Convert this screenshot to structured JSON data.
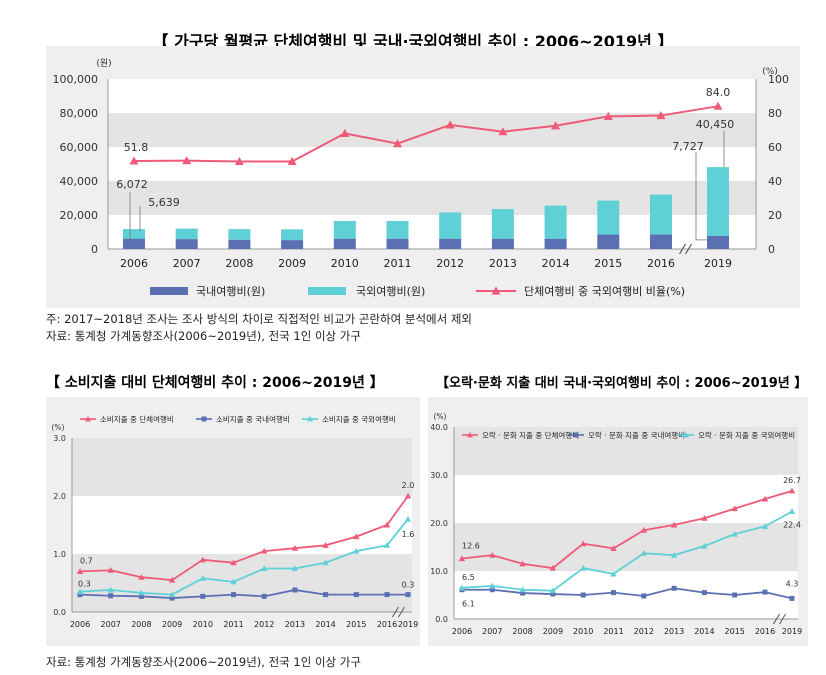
{
  "main": {
    "title": "【 가구당 월평균 단체여행비 및 국내·국외여행비 추이 : 2006~2019년 】",
    "note1": "주: 2017~2018년 조사는 조사 방식의 차이로 직접적인 비교가 곤란하여 분석에서 제외",
    "note2": "자료: 통계청 가계동향조사(2006~2019년), 전국 1인 이상 가구"
  },
  "left": {
    "title": "【 소비지출 대비 단체여행비 추이 : 2006~2019년 】"
  },
  "right": {
    "title": "【오락·문화 지출 대비 국내·국외여행비 추이 : 2006~2019년 】"
  },
  "bottom_note": "자료: 통계청 가계동향조사(2006~2019년), 전국 1인 이상 가구",
  "colors": {
    "pink": "#ef5a78",
    "blue": "#5b6fb3",
    "teal": "#5fd0d6",
    "band": "#e4e4e4",
    "panel": "#efefef"
  },
  "chart_data": [
    {
      "type": "bar",
      "categories": [
        "2006",
        "2007",
        "2008",
        "2009",
        "2010",
        "2011",
        "2012",
        "2013",
        "2014",
        "2015",
        "2016",
        "2019"
      ],
      "ylabel": "(원)",
      "y2label": "(%)",
      "ylim": [
        0,
        100000
      ],
      "y2lim": [
        0,
        100
      ],
      "yticks": [
        "0",
        "20,000",
        "40,000",
        "60,000",
        "80,000",
        "100,000"
      ],
      "y2ticks": [
        "0",
        "20",
        "40",
        "60",
        "80",
        "100"
      ],
      "series": [
        {
          "name": "국내여행비(원)",
          "type": "bar",
          "values": [
            6072,
            5800,
            5400,
            5200,
            6000,
            6000,
            6000,
            6000,
            6000,
            8500,
            8500,
            7727
          ]
        },
        {
          "name": "국외여행비(원)",
          "type": "bar",
          "values": [
            5639,
            6200,
            6300,
            6400,
            10500,
            10500,
            15500,
            17500,
            19500,
            20000,
            23500,
            40450
          ]
        },
        {
          "name": "단체여행비 중 국외여행비 비율(%)",
          "type": "line",
          "axis": "right",
          "values": [
            51.8,
            52,
            51.5,
            51.5,
            68,
            62,
            73,
            69,
            72.5,
            78,
            78.5,
            84.0
          ]
        }
      ],
      "data_labels": {
        "ratio_first": "51.8",
        "ratio_last": "84.0",
        "domestic_first": "6,072",
        "foreign_first": "5,639",
        "domestic_last": "7,727",
        "foreign_last": "40,450"
      },
      "legend": "bottom"
    },
    {
      "type": "line",
      "categories": [
        "2006",
        "2007",
        "2008",
        "2009",
        "2010",
        "2011",
        "2012",
        "2013",
        "2014",
        "2015",
        "2016",
        "2019"
      ],
      "ylabel": "(%)",
      "ylim": [
        0,
        3.0
      ],
      "yticks": [
        "0.0",
        "1.0",
        "2.0",
        "3.0"
      ],
      "series": [
        {
          "name": "소비지출 중 단체여행비",
          "values": [
            0.7,
            0.72,
            0.6,
            0.55,
            0.9,
            0.85,
            1.05,
            1.1,
            1.15,
            1.3,
            1.5,
            2.0
          ]
        },
        {
          "name": "소비지출 중 국내여행비",
          "values": [
            0.3,
            0.28,
            0.27,
            0.24,
            0.27,
            0.3,
            0.27,
            0.38,
            0.3,
            0.3,
            0.3,
            0.3
          ]
        },
        {
          "name": "소비지출 중 국외여행비",
          "values": [
            0.35,
            0.38,
            0.33,
            0.3,
            0.58,
            0.52,
            0.75,
            0.75,
            0.85,
            1.05,
            1.15,
            1.6
          ]
        }
      ],
      "data_labels": {
        "s1_first": "0.7",
        "s1_last": "2.0",
        "s2_first": "0.3",
        "s2_last": "0.3",
        "s3_last": "1.6"
      },
      "legend": "top"
    },
    {
      "type": "line",
      "categories": [
        "2006",
        "2007",
        "2008",
        "2009",
        "2010",
        "2011",
        "2012",
        "2013",
        "2014",
        "2015",
        "2016",
        "2019"
      ],
      "ylabel": "(%)",
      "ylim": [
        0,
        40.0
      ],
      "yticks": [
        "0.0",
        "10.0",
        "20.0",
        "30.0",
        "40.0"
      ],
      "series": [
        {
          "name": "오락 · 문화 지출 중 단체여행비",
          "values": [
            12.6,
            13.3,
            11.5,
            10.6,
            15.7,
            14.7,
            18.5,
            19.6,
            21.0,
            23.0,
            25.0,
            26.7
          ]
        },
        {
          "name": "오락 · 문화 지출 중 국내여행비",
          "values": [
            6.1,
            6.1,
            5.4,
            5.2,
            5.0,
            5.5,
            4.8,
            6.4,
            5.5,
            5.0,
            5.6,
            4.3
          ]
        },
        {
          "name": "오락 · 문화 지출 중 국외여행비",
          "values": [
            6.5,
            6.9,
            6.1,
            5.9,
            10.6,
            9.4,
            13.7,
            13.3,
            15.2,
            17.7,
            19.3,
            22.4
          ]
        }
      ],
      "data_labels": {
        "s1_first": "12.6",
        "s1_last": "26.7",
        "s2_first": "6.1",
        "s2_last": "4.3",
        "s3_first": "6.5",
        "s3_last": "22.4"
      },
      "legend": "top"
    }
  ]
}
